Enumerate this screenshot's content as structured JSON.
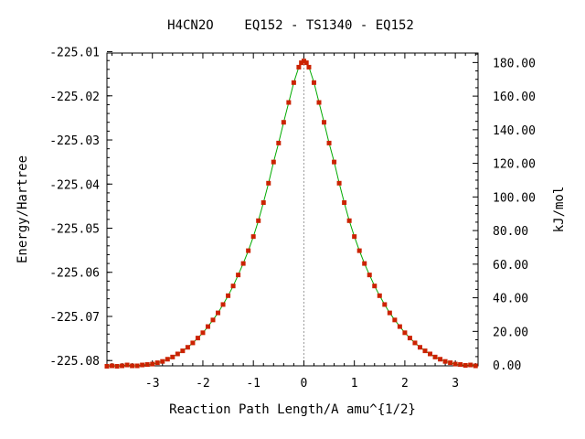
{
  "chart_data": {
    "type": "line",
    "title": "H4CN2O    EQ152 - TS1340 - EQ152",
    "xlabel": "Reaction Path Length/A amu^{1/2}",
    "ylabel": "Energy/Hartree",
    "y2label": "kJ/mol",
    "xlim": [
      -3.9,
      3.45
    ],
    "ylim": [
      -225.0812,
      -225.0103
    ],
    "y2lim": [
      -0.5,
      185.64
    ],
    "x_ticks": [
      -3,
      -2,
      -1,
      0,
      1,
      2,
      3
    ],
    "x_tick_labels": [
      "-3",
      "-2",
      "-1",
      "0",
      "1",
      "2",
      "3"
    ],
    "y_ticks": [
      -225.08,
      -225.07,
      -225.06,
      -225.05,
      -225.04,
      -225.03,
      -225.02,
      -225.01
    ],
    "y_tick_labels": [
      "-225.08",
      "-225.07",
      "-225.06",
      "-225.05",
      "-225.04",
      "-225.03",
      "-225.02",
      "-225.01"
    ],
    "y2_ticks": [
      0,
      20,
      40,
      60,
      80,
      100,
      120,
      140,
      160,
      180
    ],
    "y2_tick_labels": [
      "0.00",
      "20.00",
      "40.00",
      "60.00",
      "80.00",
      "100.00",
      "120.00",
      "140.00",
      "160.00",
      "180.00"
    ],
    "ts_marker_x": 0.0,
    "grid": false,
    "colors": {
      "line": "#00aa00",
      "points": "#cc2200",
      "ts_line": "#999999"
    },
    "series": [
      {
        "x": [
          -3.9,
          -3.8,
          -3.7,
          -3.6,
          -3.5,
          -3.4,
          -3.3,
          -3.2,
          -3.1,
          -3.0,
          -2.9,
          -2.8,
          -2.7,
          -2.6,
          -2.5,
          -2.4,
          -2.3,
          -2.2,
          -2.1,
          -2.0,
          -1.9,
          -1.8,
          -1.7,
          -1.6,
          -1.5,
          -1.4,
          -1.3,
          -1.2,
          -1.1,
          -1.0,
          -0.9,
          -0.8,
          -0.7,
          -0.6,
          -0.5,
          -0.4,
          -0.3,
          -0.2,
          -0.1,
          -0.05,
          0.0,
          0.05,
          0.1,
          0.2,
          0.3,
          0.4,
          0.5,
          0.6,
          0.7,
          0.8,
          0.9,
          1.0,
          1.1,
          1.2,
          1.3,
          1.4,
          1.5,
          1.6,
          1.7,
          1.8,
          1.9,
          2.0,
          2.1,
          2.2,
          2.3,
          2.4,
          2.5,
          2.6,
          2.7,
          2.8,
          2.9,
          3.0,
          3.1,
          3.2,
          3.3,
          3.4
        ],
        "y": [
          -225.0813,
          -225.0812,
          -225.0813,
          -225.0812,
          -225.081,
          -225.0812,
          -225.0812,
          -225.081,
          -225.0809,
          -225.0808,
          -225.0805,
          -225.0802,
          -225.0797,
          -225.0792,
          -225.0785,
          -225.0778,
          -225.077,
          -225.076,
          -225.0749,
          -225.0737,
          -225.0723,
          -225.0708,
          -225.0692,
          -225.0673,
          -225.0653,
          -225.0631,
          -225.0606,
          -225.058,
          -225.0551,
          -225.0519,
          -225.0483,
          -225.0442,
          -225.0398,
          -225.035,
          -225.0307,
          -225.026,
          -225.0215,
          -225.017,
          -225.0135,
          -225.0125,
          -225.0121,
          -225.0125,
          -225.0135,
          -225.017,
          -225.0215,
          -225.026,
          -225.0307,
          -225.035,
          -225.0398,
          -225.0442,
          -225.0483,
          -225.0519,
          -225.0551,
          -225.058,
          -225.0606,
          -225.0631,
          -225.0653,
          -225.0673,
          -225.0692,
          -225.0708,
          -225.0723,
          -225.0737,
          -225.0749,
          -225.076,
          -225.077,
          -225.0778,
          -225.0785,
          -225.0792,
          -225.0797,
          -225.0802,
          -225.0805,
          -225.0808,
          -225.0809,
          -225.0811,
          -225.081,
          -225.0812
        ]
      }
    ]
  }
}
